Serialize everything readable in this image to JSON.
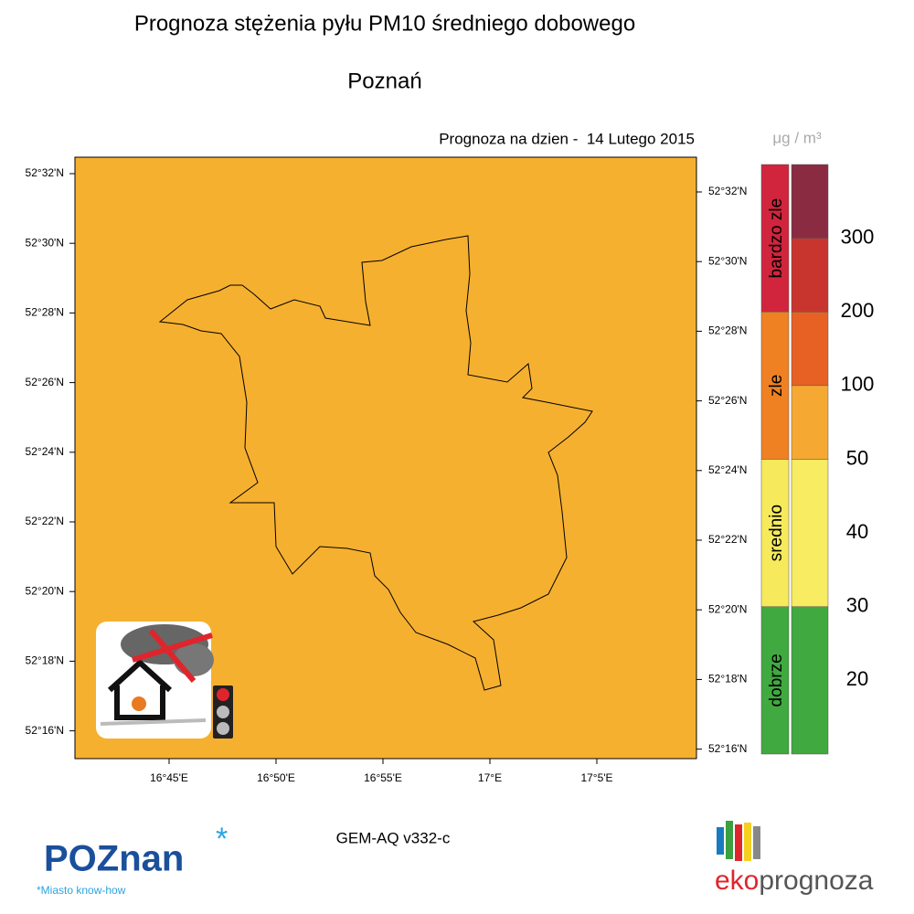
{
  "header": {
    "title": "Prognoza stężenia pyłu PM10 średniego dobowego",
    "city": "Poznań",
    "forecast_date": "Prognoza na dzien -  14 Lutego 2015"
  },
  "map": {
    "fill_color": "#f6b02f",
    "left_lat_labels": [
      "52°32'N",
      "52°30'N",
      "52°28'N",
      "52°26'N",
      "52°24'N",
      "52°22'N",
      "52°20'N",
      "52°18'N",
      "52°16'N"
    ],
    "right_lat_labels": [
      "52°32'N",
      "52°30'N",
      "52°28'N",
      "52°26'N",
      "52°24'N",
      "52°22'N",
      "52°20'N",
      "52°18'N",
      "52°16'N"
    ],
    "lon_labels": [
      "16°45'E",
      "16°50'E",
      "16°55'E",
      "17°E",
      "17°5'E"
    ]
  },
  "legend": {
    "unit": "μg / m³",
    "categories": [
      {
        "label": "bardzo zle",
        "color": "#d0253d"
      },
      {
        "label": "zle",
        "color": "#ef8123"
      },
      {
        "label": "srednio",
        "color": "#f6ea5c"
      },
      {
        "label": "dobrze",
        "color": "#40a93f"
      }
    ],
    "level_colors": [
      "#8a2b42",
      "#c8352e",
      "#e86124",
      "#f5a933",
      "#f7ec62",
      "#40a93f"
    ],
    "levels": [
      300,
      200,
      100,
      50,
      40,
      30,
      20
    ]
  },
  "footer": {
    "model": "GEM-AQ v332-c",
    "city_logo": "POZnan",
    "city_slogan": "*Miasto know-how",
    "brand_prefix": "eko",
    "brand_suffix": "prognoza"
  }
}
